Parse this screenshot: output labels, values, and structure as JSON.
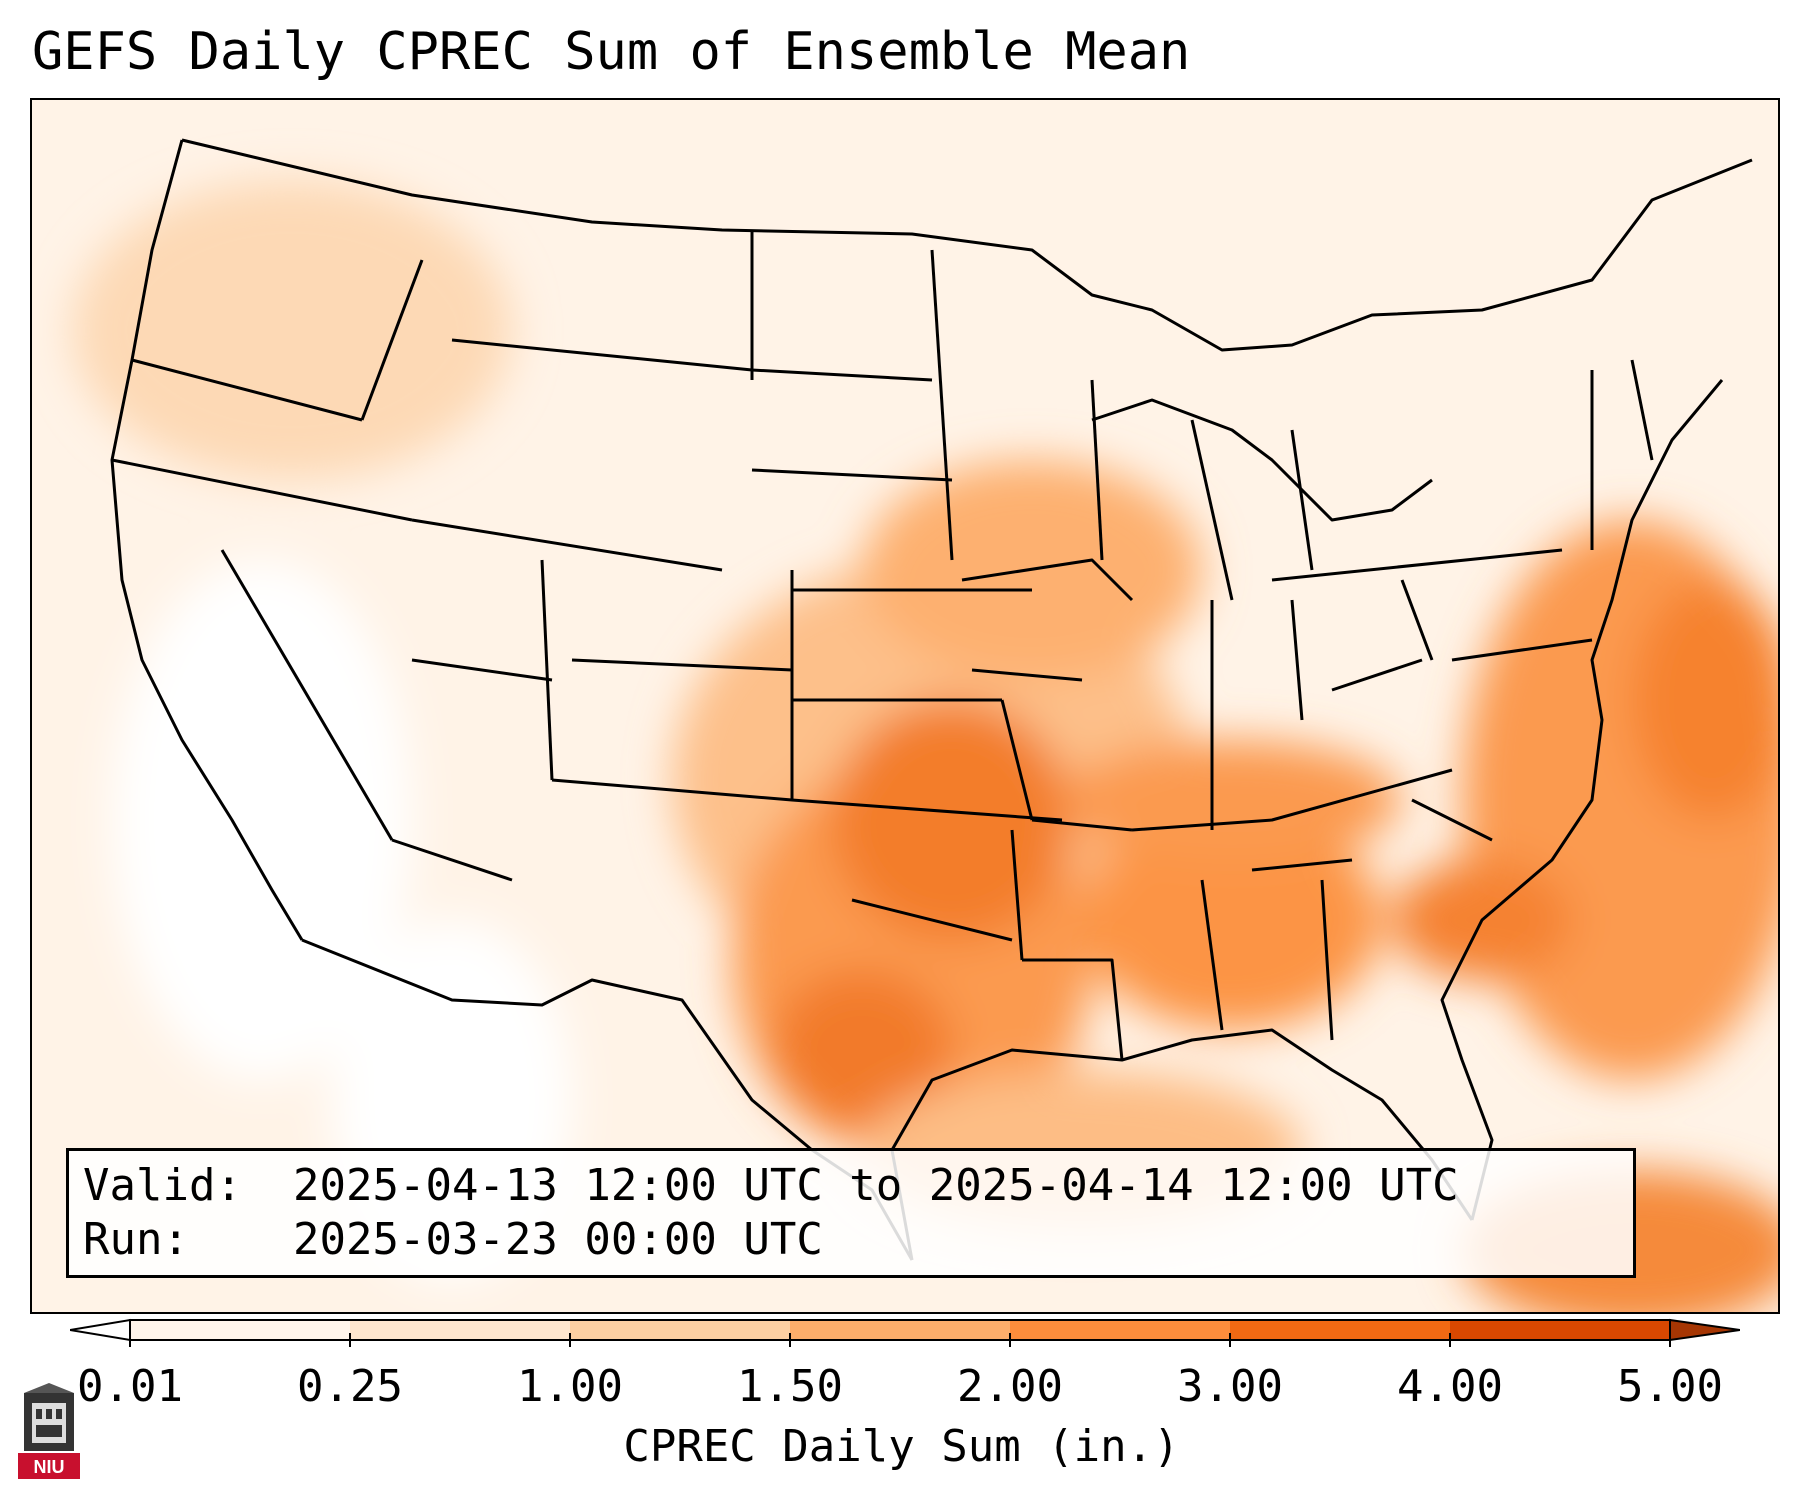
{
  "title": "GEFS Daily CPREC Sum of Ensemble Mean",
  "info": {
    "valid_label": "Valid:",
    "valid_value": "2025-04-13 12:00 UTC to 2025-04-14 12:00 UTC",
    "run_label": "Run:",
    "run_value": "2025-03-23 00:00 UTC"
  },
  "colorbar": {
    "label": "CPREC Daily Sum (in.)",
    "ticks": [
      "0.01",
      "0.25",
      "1.00",
      "1.50",
      "2.00",
      "3.00",
      "4.00",
      "5.00"
    ],
    "colors": [
      "#fff5eb",
      "#fee6ce",
      "#fdd0a2",
      "#fdae6b",
      "#fd8d3c",
      "#f16913",
      "#d94801",
      "#a63603"
    ],
    "under_color": "#ffffff",
    "over_color": "#7f2704"
  },
  "logo": {
    "text": "NIU",
    "color": "#c8102e"
  }
}
